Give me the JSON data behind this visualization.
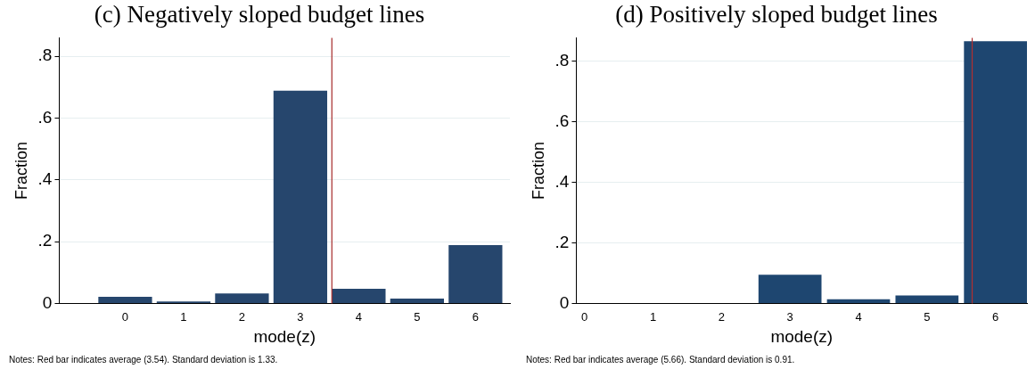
{
  "chart_data": [
    {
      "type": "bar",
      "title": "(c) Negatively sloped budget lines",
      "xlabel": "mode(z)",
      "ylabel": "Fraction",
      "x": [
        0,
        1,
        2,
        3,
        4,
        5,
        6
      ],
      "values": [
        0.022,
        0.007,
        0.033,
        0.689,
        0.048,
        0.016,
        0.189
      ],
      "color": "#26466d",
      "xlim": [
        -1.13,
        6.59
      ],
      "xticks": [
        0,
        1,
        2,
        3,
        4,
        5,
        6
      ],
      "ylim": [
        0,
        0.86
      ],
      "yticks": [
        {
          "value": 0,
          "label": "0"
        },
        {
          "value": 0.2,
          "label": ".2"
        },
        {
          "value": 0.4,
          "label": ".4"
        },
        {
          "value": 0.6,
          "label": ".6"
        },
        {
          "value": 0.8,
          "label": ".8"
        }
      ],
      "grid": "y",
      "ref_lines": [
        {
          "axis": "x",
          "value": 3.54,
          "color": "#a52a2a"
        }
      ],
      "annotations": [
        "Notes: Red bar indicates average (3.54). Standard deviation is 1.33."
      ]
    },
    {
      "type": "bar",
      "title": "(d) Positively sloped budget lines",
      "xlabel": "mode(z)",
      "ylabel": "Fraction",
      "x": [
        0,
        1,
        2,
        3,
        4,
        5,
        6
      ],
      "values": [
        0,
        0,
        0,
        0.095,
        0.014,
        0.027,
        0.867
      ],
      "color": "#1e4670",
      "xlim": [
        -0.12,
        6.46
      ],
      "xticks": [
        0,
        1,
        2,
        3,
        4,
        5,
        6
      ],
      "ylim": [
        0,
        0.878
      ],
      "yticks": [
        {
          "value": 0,
          "label": "0"
        },
        {
          "value": 0.2,
          "label": ".2"
        },
        {
          "value": 0.4,
          "label": ".4"
        },
        {
          "value": 0.6,
          "label": ".6"
        },
        {
          "value": 0.8,
          "label": ".8"
        }
      ],
      "grid": "y",
      "ref_lines": [
        {
          "axis": "x",
          "value": 5.66,
          "color": "#b03030"
        }
      ],
      "annotations": [
        "Notes: Red bar indicates average (5.66). Standard deviation is 0.91."
      ]
    }
  ]
}
